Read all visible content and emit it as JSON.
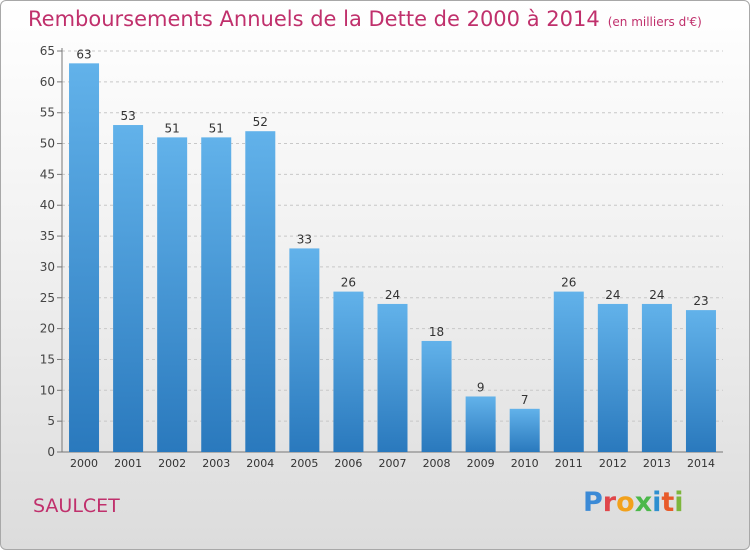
{
  "header": {
    "title": "Remboursements Annuels de la Dette de 2000 à 2014",
    "subtitle": "(en milliers d'€)"
  },
  "footer": {
    "city": "SAULCET",
    "logo": {
      "p": "P",
      "r": "r",
      "o": "o",
      "x": "x",
      "i1": "i",
      "t": "t",
      "i2": "i"
    }
  },
  "colors": {
    "bar_light": "#62b2ea",
    "bar_dark": "#2a79bd",
    "title": "#c0306c",
    "grid": "#c8c8c8"
  },
  "chart_data": {
    "type": "bar",
    "title": "Remboursements Annuels de la Dette de 2000 à 2014",
    "xlabel": "",
    "ylabel": "",
    "categories": [
      "2000",
      "2001",
      "2002",
      "2003",
      "2004",
      "2005",
      "2006",
      "2007",
      "2008",
      "2009",
      "2010",
      "2011",
      "2012",
      "2013",
      "2014"
    ],
    "values": [
      63,
      53,
      51,
      51,
      52,
      33,
      26,
      24,
      18,
      9,
      7,
      26,
      24,
      24,
      23
    ],
    "ylim": [
      0,
      65
    ],
    "yticks": [
      0,
      5,
      10,
      15,
      20,
      25,
      30,
      35,
      40,
      45,
      50,
      55,
      60,
      65
    ],
    "grid": true,
    "data_labels": true
  }
}
